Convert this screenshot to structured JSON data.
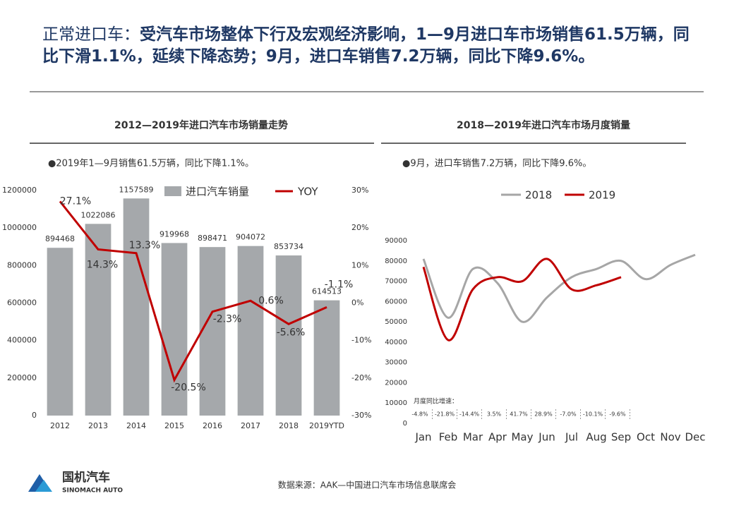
{
  "header": {
    "title_lead": "正常进口车：",
    "title": "受汽车市场整体下行及宏观经济影响，1—9月进口车市场销售61.5万辆，同比下滑1.1%，延续下降态势；9月，进口车销售7.2万辆，同比下降9.6%。"
  },
  "chart_data": [
    {
      "type": "bar",
      "title": "2012—2019年进口汽车市场销量走势",
      "note": "●2019年1—9月销售61.5万辆，同比下降1.1%。",
      "categories": [
        "2012",
        "2013",
        "2014",
        "2015",
        "2016",
        "2017",
        "2018",
        "2019YTD"
      ],
      "series": [
        {
          "name": "进口汽车销量",
          "type": "bar",
          "color": "#a5a8ab",
          "values": [
            894468,
            1022086,
            1157589,
            919968,
            898471,
            904072,
            853734,
            614513
          ]
        },
        {
          "name": "YOY",
          "type": "line",
          "axis": "y2",
          "color": "#c00000",
          "values": [
            27.1,
            14.3,
            13.3,
            -20.5,
            -2.3,
            0.6,
            -5.6,
            -1.1
          ],
          "value_labels": [
            "27.1%",
            "14.3%",
            "13.3%",
            "-20.5%",
            "-2.3%",
            "0.6%",
            "-5.6%",
            "-1.1%"
          ]
        }
      ],
      "ylim": [
        0,
        1200000
      ],
      "yticks": [
        0,
        200000,
        400000,
        600000,
        800000,
        1000000,
        1200000
      ],
      "y2lim": [
        -30,
        30
      ],
      "y2ticks": [
        {
          "value": -30,
          "label": "-30%"
        },
        {
          "value": -20,
          "label": "-20%"
        },
        {
          "value": -10,
          "label": "-10%"
        },
        {
          "value": 0,
          "label": "0%"
        },
        {
          "value": 10,
          "label": "10%"
        },
        {
          "value": 20,
          "label": "20%"
        },
        {
          "value": 30,
          "label": "30%"
        }
      ]
    },
    {
      "type": "line",
      "smooth": true,
      "title": "2018—2019年进口汽车市场月度销量",
      "note": "●9月，进口车销售7.2万辆，同比下降9.6%。",
      "categories": [
        "Jan",
        "Feb",
        "Mar",
        "Apr",
        "May",
        "Jun",
        "Jul",
        "Aug",
        "Sep",
        "Oct",
        "Nov",
        "Dec"
      ],
      "series": [
        {
          "name": "2018",
          "color": "#a6a6a6",
          "values": [
            81000,
            52000,
            76000,
            69000,
            50000,
            62000,
            72000,
            76000,
            80000,
            71000,
            78000,
            83000
          ]
        },
        {
          "name": "2019",
          "color": "#c00000",
          "values": [
            77000,
            41000,
            66000,
            72000,
            70000,
            81000,
            66000,
            68000,
            72000,
            null,
            null,
            null
          ]
        }
      ],
      "ylim": [
        0,
        90000
      ],
      "yticks": [
        0,
        10000,
        20000,
        30000,
        40000,
        50000,
        60000,
        70000,
        80000,
        90000
      ],
      "annotation_title": "月度同比增速：",
      "annotations": [
        "-4.8%",
        "-21.8%",
        "-14.4%",
        "3.5%",
        "41.7%",
        "28.9%",
        "-7.0%",
        "-10.1%",
        "-9.6%"
      ]
    }
  ],
  "footer": {
    "source": "数据来源：AAK—中国进口汽车市场信息联席会",
    "logo_name": "国机汽车",
    "logo_sub": "SINOMACH AUTO"
  }
}
